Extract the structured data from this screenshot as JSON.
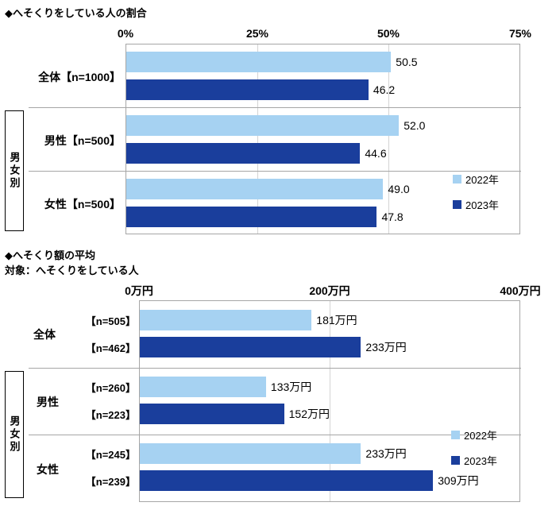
{
  "chart_data": [
    {
      "type": "bar",
      "title": "◆へそくりをしている人の割合",
      "x_ticks": [
        "0%",
        "25%",
        "50%",
        "75%"
      ],
      "xlim": [
        0,
        75
      ],
      "grid": true,
      "legend_position": "right-inside",
      "group_label": "男女別",
      "categories": [
        "全体【n=1000】",
        "男性【n=500】",
        "女性【n=500】"
      ],
      "series": [
        {
          "name": "2022年",
          "color": "#a6d2f2",
          "values": [
            50.5,
            52.0,
            49.0
          ],
          "labels": [
            "50.5",
            "52.0",
            "49.0"
          ]
        },
        {
          "name": "2023年",
          "color": "#1a3e9c",
          "values": [
            46.2,
            44.6,
            47.8
          ],
          "labels": [
            "46.2",
            "44.6",
            "47.8"
          ]
        }
      ]
    },
    {
      "type": "bar",
      "title": "◆へそくり額の平均",
      "subtitle": "対象：へそくりをしている人",
      "x_ticks": [
        "0万円",
        "200万円",
        "400万円"
      ],
      "xlim": [
        0,
        400
      ],
      "grid": true,
      "legend_position": "right-inside",
      "group_label": "男女別",
      "categories": [
        "全体",
        "男性",
        "女性"
      ],
      "n_labels": [
        [
          "【n=505】",
          "【n=462】"
        ],
        [
          "【n=260】",
          "【n=223】"
        ],
        [
          "【n=245】",
          "【n=239】"
        ]
      ],
      "series": [
        {
          "name": "2022年",
          "color": "#a6d2f2",
          "values": [
            181,
            133,
            233
          ],
          "labels": [
            "181万円",
            "133万円",
            "233万円"
          ]
        },
        {
          "name": "2023年",
          "color": "#1a3e9c",
          "values": [
            233,
            152,
            309
          ],
          "labels": [
            "233万円",
            "152万円",
            "309万円"
          ]
        }
      ]
    }
  ]
}
